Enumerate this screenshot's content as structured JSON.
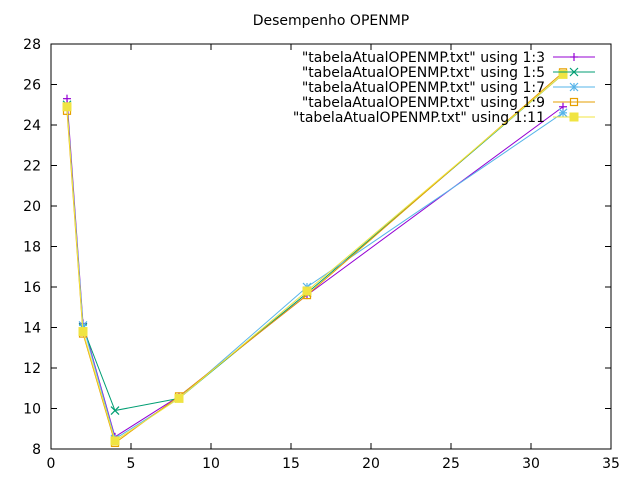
{
  "chart_data": {
    "type": "line",
    "title": "Desempenho OPENMP",
    "xlabel": "",
    "ylabel": "",
    "xlim": [
      0,
      35
    ],
    "ylim": [
      8,
      28
    ],
    "xticks": [
      0,
      5,
      10,
      15,
      20,
      25,
      30,
      35
    ],
    "yticks": [
      8,
      10,
      12,
      14,
      16,
      18,
      20,
      22,
      24,
      26,
      28
    ],
    "grid": false,
    "legend_position": "top-right",
    "series": [
      {
        "name": "\"tabelaAtualOPENMP.txt\" using 1:3",
        "color": "#9400d3",
        "marker": "plus",
        "x": [
          1,
          2,
          4,
          8,
          16,
          32
        ],
        "y": [
          25.3,
          14.2,
          8.6,
          10.6,
          15.6,
          24.9
        ]
      },
      {
        "name": "\"tabelaAtualOPENMP.txt\" using 1:5",
        "color": "#009e73",
        "marker": "cross",
        "x": [
          1,
          2,
          4,
          8,
          16,
          32
        ],
        "y": [
          25.0,
          14.0,
          9.9,
          10.5,
          15.7,
          26.5
        ]
      },
      {
        "name": "\"tabelaAtualOPENMP.txt\" using 1:7",
        "color": "#56b4e9",
        "marker": "star",
        "x": [
          1,
          2,
          4,
          8,
          16,
          32
        ],
        "y": [
          24.9,
          14.1,
          8.5,
          10.5,
          16.0,
          24.6
        ]
      },
      {
        "name": "\"tabelaAtualOPENMP.txt\" using 1:9",
        "color": "#e69f00",
        "marker": "open-square",
        "x": [
          1,
          2,
          4,
          8,
          16,
          32
        ],
        "y": [
          24.7,
          13.7,
          8.3,
          10.6,
          15.6,
          26.6
        ]
      },
      {
        "name": "\"tabelaAtualOPENMP.txt\" using 1:11",
        "color": "#f0e442",
        "marker": "filled-square",
        "x": [
          1,
          2,
          4,
          8,
          16,
          32
        ],
        "y": [
          24.9,
          13.8,
          8.4,
          10.5,
          15.8,
          26.5
        ]
      }
    ]
  }
}
